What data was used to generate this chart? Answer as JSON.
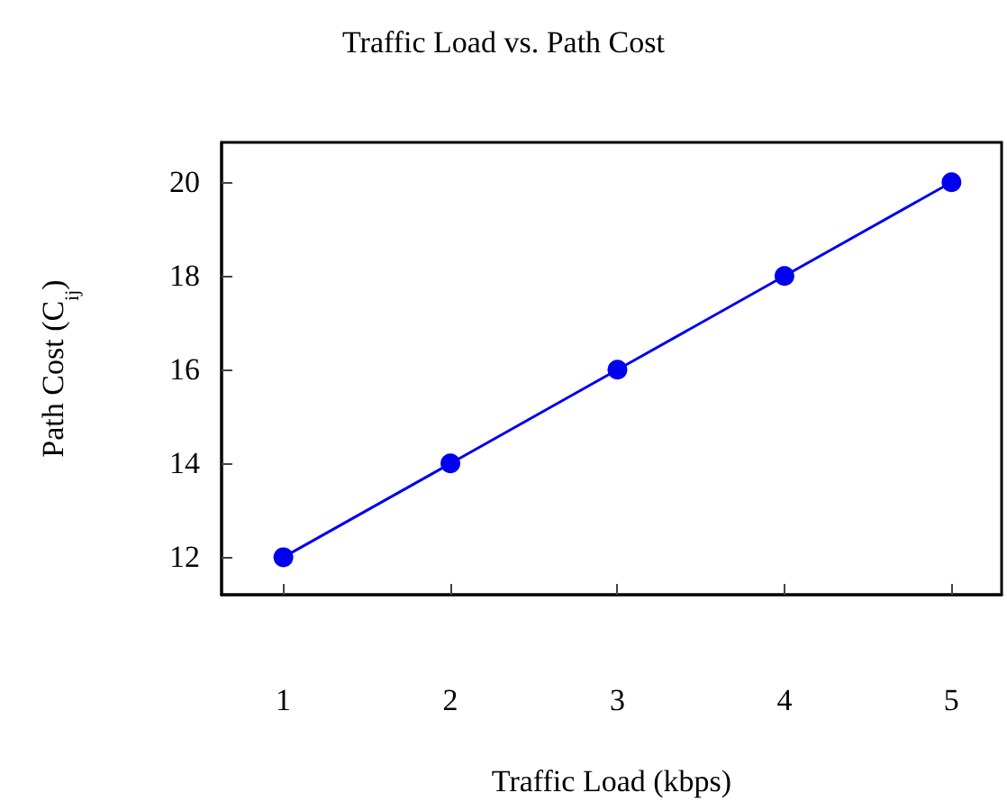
{
  "chart_data": {
    "type": "line",
    "title": "Traffic Load vs. Path Cost",
    "xlabel": "Traffic Load (kbps)",
    "ylabel": "Path Cost (C$_{ij}$)",
    "x": [
      1,
      2,
      3,
      4,
      5
    ],
    "series": [
      {
        "color": "#0000ee",
        "values": [
          12,
          14,
          16,
          18,
          20
        ]
      }
    ],
    "xlim": [
      0.63,
      5.3
    ],
    "xticks": [
      1,
      2,
      3,
      4,
      5
    ],
    "ylim": [
      11.2,
      20.85
    ],
    "yticks": [
      12,
      14,
      16,
      18,
      20
    ],
    "marker": "circle",
    "line_style": "solid",
    "grid": false
  }
}
